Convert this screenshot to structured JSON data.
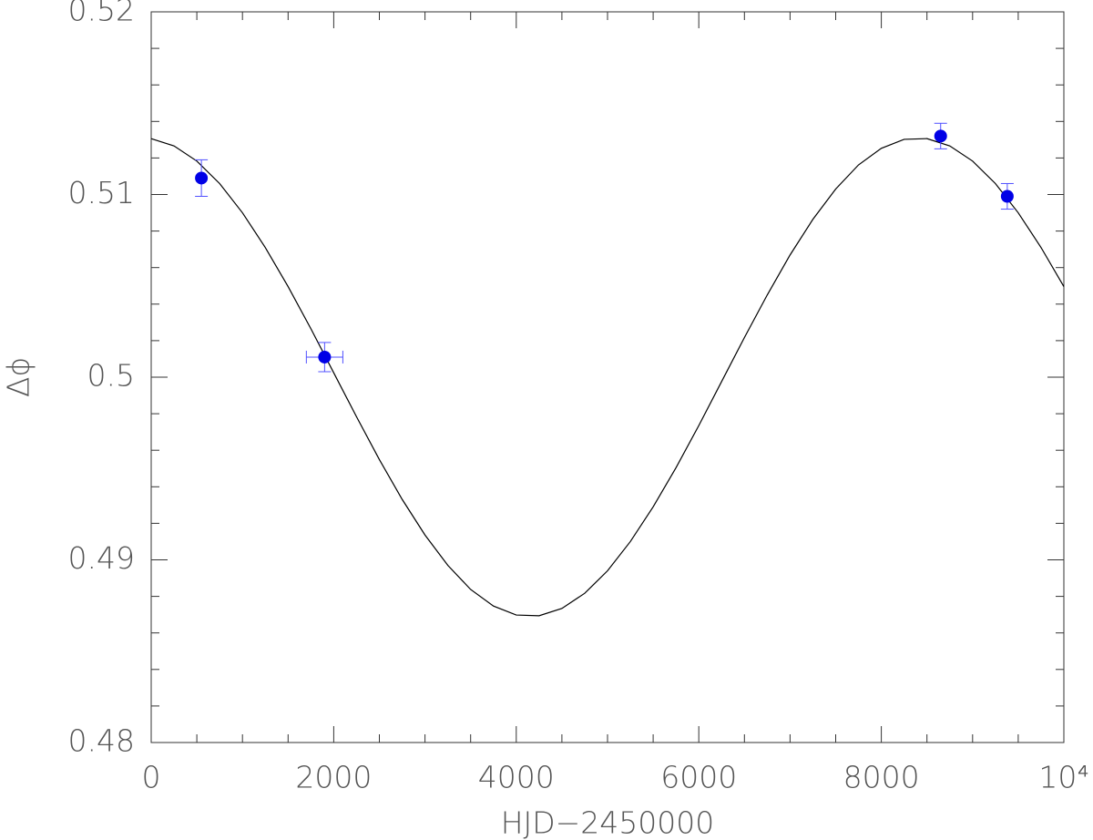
{
  "chart_data": {
    "type": "scatter",
    "xlabel": "HJD−2450000",
    "ylabel": "Δϕ",
    "xlim": [
      0,
      10000
    ],
    "ylim": [
      0.48,
      0.52
    ],
    "xticks": [
      0,
      2000,
      4000,
      6000,
      8000,
      {
        "value": 10000,
        "label": "10⁴"
      }
    ],
    "yticks": [
      0.48,
      0.49,
      0.5,
      0.51,
      0.52
    ],
    "series": [
      {
        "type": "scatter",
        "color": "#0000e6",
        "errorcolor": "#5050ff",
        "x": [
          550,
          1900,
          8650,
          9380
        ],
        "values": [
          0.5109,
          0.5011,
          0.5132,
          0.5099
        ],
        "yerr": [
          0.001,
          0.0008,
          0.0007,
          0.0007
        ],
        "xerr": [
          null,
          200,
          null,
          null
        ]
      },
      {
        "type": "line",
        "color": "#000000",
        "x": [
          0,
          250,
          500,
          750,
          1000,
          1250,
          1500,
          1750,
          2000,
          2250,
          2500,
          2750,
          3000,
          3250,
          3500,
          3750,
          4000,
          4250,
          4500,
          4750,
          5000,
          5250,
          5500,
          5750,
          6000,
          6250,
          6500,
          6750,
          7000,
          7250,
          7500,
          7750,
          8000,
          8250,
          8500,
          8750,
          9000,
          9250,
          9500,
          9750,
          10000
        ],
        "values": [
          0.51306,
          0.51266,
          0.51183,
          0.5106,
          0.509,
          0.5071,
          0.50496,
          0.50265,
          0.50024,
          0.49783,
          0.49549,
          0.49331,
          0.49136,
          0.4897,
          0.48838,
          0.48747,
          0.48698,
          0.48694,
          0.48734,
          0.48817,
          0.4894,
          0.491,
          0.4929,
          0.49504,
          0.49735,
          0.49976,
          0.50217,
          0.5045,
          0.50669,
          0.50864,
          0.5103,
          0.51162,
          0.51253,
          0.51302,
          0.51306,
          0.51266,
          0.51183,
          0.5106,
          0.509,
          0.5071,
          0.50496
        ]
      }
    ]
  }
}
